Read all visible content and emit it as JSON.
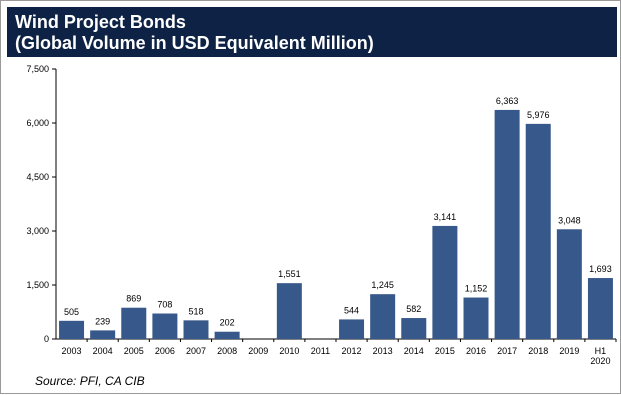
{
  "header": {
    "title_line1": "Wind Project Bonds",
    "title_line2": "(Global Volume in USD Equivalent Million)"
  },
  "source": "Source: PFI, CA CIB",
  "colors": {
    "bar": "#37588a",
    "header_bg": "#0d2245",
    "header_text": "#ffffff"
  },
  "chart_data": {
    "type": "bar",
    "categories": [
      "2003",
      "2004",
      "2005",
      "2006",
      "2007",
      "2008",
      "2009",
      "2010",
      "2011",
      "2012",
      "2013",
      "2014",
      "2015",
      "2016",
      "2017",
      "2018",
      "2019",
      "H1 2020"
    ],
    "values": [
      505,
      239,
      869,
      708,
      518,
      202,
      null,
      1551,
      null,
      544,
      1245,
      582,
      3141,
      1152,
      6363,
      5976,
      3048,
      1693
    ],
    "data_labels": [
      "505",
      "239",
      "869",
      "708",
      "518",
      "202",
      "",
      "1,551",
      "",
      "544",
      "1,245",
      "582",
      "3,141",
      "1,152",
      "6,363",
      "5,976",
      "3,048",
      "1,693"
    ],
    "ylim": [
      0,
      7500
    ],
    "yticks": [
      0,
      1500,
      3000,
      4500,
      6000,
      7500
    ],
    "ytick_labels": [
      "0",
      "1,500",
      "3,000",
      "4,500",
      "6,000",
      "7,500"
    ],
    "title": "Wind Project Bonds (Global Volume in USD Equivalent Million)",
    "xlabel": "",
    "ylabel": "",
    "grid": false,
    "legend": "none"
  }
}
